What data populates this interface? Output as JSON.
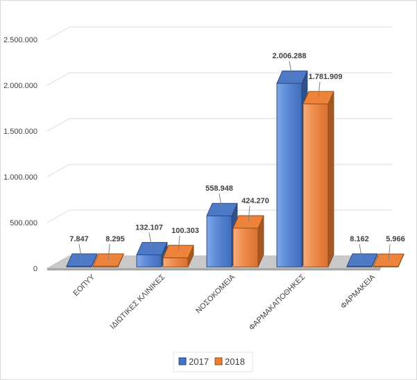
{
  "chart_data": {
    "type": "bar",
    "style": "3d-clustered-column",
    "categories": [
      "ΕΟΠΥΥ",
      "ΙΔΙΩΤΙΚΕΣ ΚΛΙΝΙΚΕΣ",
      "ΝΟΣΟΚΟΜΕΙΑ",
      "ΦΑΡΜΑΚΑΠΟΘΗΚΕΣ",
      "ΦΑΡΜΑΚΕΙΑ"
    ],
    "series": [
      {
        "name": "2017",
        "color": "#4472c4",
        "values": [
          7847,
          132107,
          558948,
          2006288,
          8162
        ],
        "labels": [
          "7.847",
          "132.107",
          "558.948",
          "2.006.288",
          "8.162"
        ]
      },
      {
        "name": "2018",
        "color": "#ed7d31",
        "values": [
          8295,
          100303,
          424270,
          1781909,
          5966
        ],
        "labels": [
          "8.295",
          "100.303",
          "424.270",
          "1.781.909",
          "5.966"
        ]
      }
    ],
    "yticks": [
      0,
      500000,
      1000000,
      1500000,
      2000000,
      2500000
    ],
    "ytick_labels": [
      "0",
      "500.000",
      "1.000.000",
      "1.500.000",
      "2.000.000",
      "2.500.000"
    ],
    "ylim": [
      0,
      2500000
    ],
    "title": "",
    "xlabel": "",
    "ylabel": "",
    "legend": "bottom-center",
    "grid": true
  }
}
